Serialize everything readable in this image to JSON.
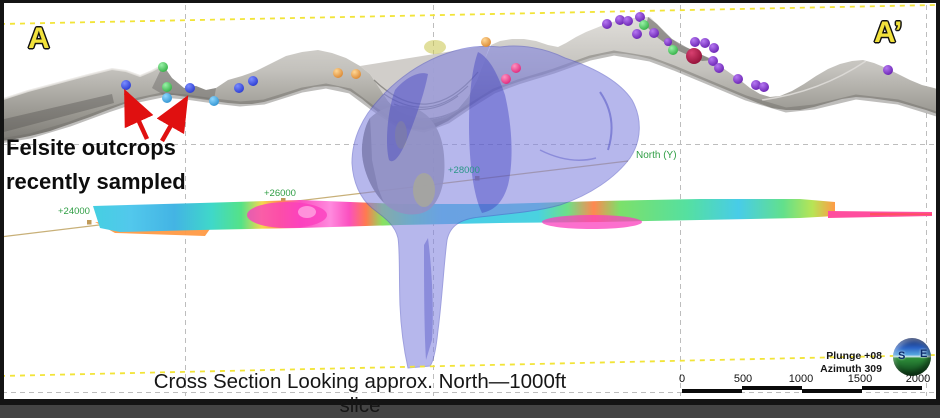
{
  "frame": {
    "section_start": "A",
    "section_end": "A’"
  },
  "annotation": {
    "line1": "Felsite outcrops",
    "line2": "recently sampled"
  },
  "caption": {
    "text": "Cross Section Looking approx. North—1000ft slice"
  },
  "axis": {
    "name": "North (Y)",
    "tick1": "+24000",
    "tick2": "+26000",
    "tick3": "+28000"
  },
  "view_info": {
    "plunge": "Plunge +08",
    "azimuth": "Azimuth 309"
  },
  "scale_bar": {
    "l0": "0",
    "l1": "500",
    "l2": "1000",
    "l3": "1500",
    "l4": "2000"
  },
  "globe": {
    "west_letter": "S",
    "east_letter": "E"
  },
  "colors": {
    "section_label_yellow": "#f2e23c",
    "slice_line_yellow": "#f2e438",
    "annotation_arrow_red": "#e01010",
    "axis_label_green": "#2f9e44",
    "axis_line_tan": "#c8b078",
    "grid_gray": "#bdbdbd",
    "felsite_blue_body": "#8284e0",
    "terrain_gray": "#b5b3ae"
  },
  "points": {
    "items": [
      [
        126,
        85,
        "blue"
      ],
      [
        163,
        67,
        "green"
      ],
      [
        167,
        87,
        "green"
      ],
      [
        167,
        98,
        "cyan"
      ],
      [
        190,
        88,
        "blue"
      ],
      [
        214,
        101,
        "cyan"
      ],
      [
        239,
        88,
        "blue"
      ],
      [
        253,
        81,
        "blue"
      ],
      [
        338,
        73,
        "orange"
      ],
      [
        356,
        74,
        "orange"
      ],
      [
        486,
        42,
        "orange"
      ],
      [
        516,
        68,
        "pink"
      ],
      [
        506,
        79,
        "pink"
      ],
      [
        607,
        24,
        "purple"
      ],
      [
        620,
        20,
        "purple"
      ],
      [
        628,
        21,
        "purple"
      ],
      [
        640,
        17,
        "purple"
      ],
      [
        644,
        25,
        "green"
      ],
      [
        637,
        34,
        "purple"
      ],
      [
        654,
        33,
        "purple"
      ],
      [
        668,
        42,
        "purple",
        4
      ],
      [
        673,
        50,
        "green"
      ],
      [
        694,
        56,
        "crimson",
        8
      ],
      [
        695,
        42,
        "purple"
      ],
      [
        705,
        43,
        "purple"
      ],
      [
        714,
        48,
        "purple"
      ],
      [
        713,
        61,
        "purple"
      ],
      [
        719,
        68,
        "purple"
      ],
      [
        738,
        79,
        "purple"
      ],
      [
        756,
        85,
        "purple"
      ],
      [
        764,
        87,
        "purple"
      ],
      [
        888,
        70,
        "purple"
      ]
    ]
  },
  "arrows": [
    [
      147,
      139,
      126,
      93
    ],
    [
      162,
      141,
      186,
      99
    ]
  ]
}
